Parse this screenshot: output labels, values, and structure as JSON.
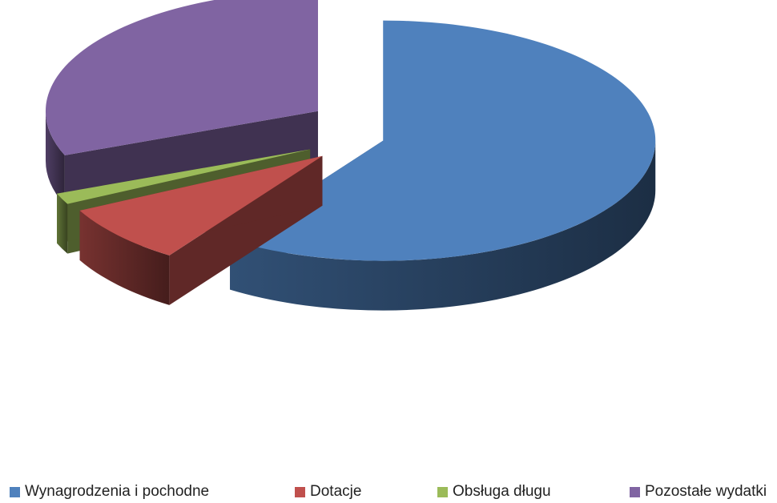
{
  "chart_data": {
    "type": "pie",
    "title": "",
    "legend_position": "bottom",
    "exploded": true,
    "three_d": true,
    "slices": [
      {
        "name": "Wynagrodzenia i pochodne",
        "value": 59.5,
        "color": "#4F81BD"
      },
      {
        "name": "Dotacje",
        "value": 8.0,
        "color": "#C0504D"
      },
      {
        "name": "Obsługa długu",
        "value": 1.5,
        "color": "#9BBB59"
      },
      {
        "name": "Pozostałe wydatki",
        "value": 31.0,
        "color": "#8064A2"
      }
    ]
  }
}
